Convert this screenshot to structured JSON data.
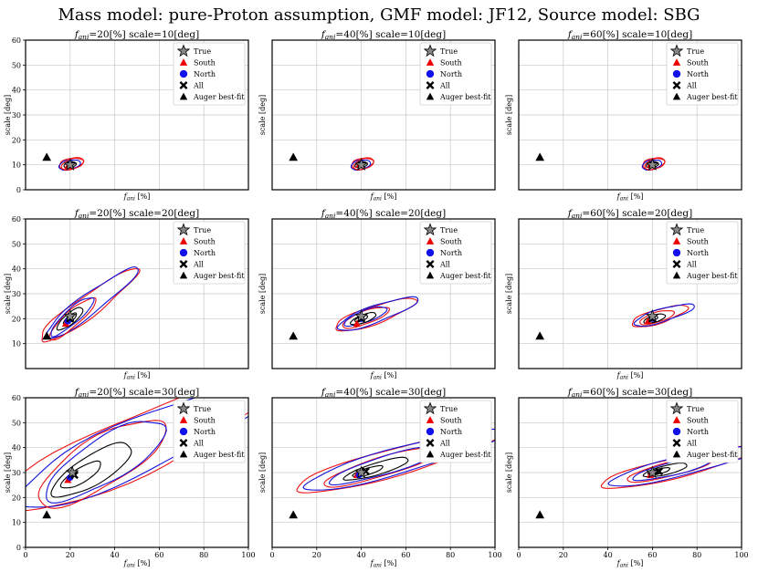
{
  "figure": {
    "title": "Mass model: pure-Proton assumption, GMF model: JF12, Source model: SBG"
  },
  "legend": {
    "entries": [
      {
        "label": "True",
        "marker": "star",
        "color": "#888888"
      },
      {
        "label": "South",
        "marker": "triangle",
        "color": "#ee0000"
      },
      {
        "label": "North",
        "marker": "circle",
        "color": "#1111ee"
      },
      {
        "label": "All",
        "marker": "x",
        "color": "#000000"
      },
      {
        "label": "Auger best-fit",
        "marker": "triangle",
        "color": "#000000"
      }
    ]
  },
  "colors": {
    "south": "#ee1111",
    "north": "#1111dd",
    "all": "#000000",
    "grid": "#c8c8c8"
  },
  "chart_data": [
    {
      "type": "contour",
      "panel_title": "f_ani=20[%] scale=10[deg]",
      "fani": 20,
      "scale": 10,
      "xlabel": "f_ani [%]",
      "ylabel": "scale [deg]",
      "xlim": [
        0,
        100
      ],
      "ylim": [
        0,
        60
      ],
      "yticks": [
        0,
        10,
        20,
        30,
        40,
        50,
        60
      ],
      "xticks": [],
      "grid": true,
      "legend": "top-right",
      "true": [
        20,
        10
      ],
      "south": [
        19,
        9.5
      ],
      "north": [
        20,
        10.5
      ],
      "all": [
        20,
        10
      ],
      "auger": [
        9.5,
        13
      ],
      "contour_extent": {
        "x": [
          15,
          27
        ],
        "y": [
          7,
          14
        ]
      }
    },
    {
      "type": "contour",
      "panel_title": "f_ani=40[%] scale=10[deg]",
      "fani": 40,
      "scale": 10,
      "xlabel": "f_ani [%]",
      "ylabel": "scale [deg]",
      "xlim": [
        0,
        100
      ],
      "ylim": [
        0,
        60
      ],
      "yticks": [],
      "xticks": [],
      "grid": true,
      "legend": "top-right",
      "true": [
        40,
        10
      ],
      "south": [
        39,
        10
      ],
      "north": [
        40,
        10.5
      ],
      "all": [
        40,
        10
      ],
      "auger": [
        9.5,
        13
      ],
      "contour_extent": {
        "x": [
          34,
          46
        ],
        "y": [
          8,
          13
        ]
      }
    },
    {
      "type": "contour",
      "panel_title": "f_ani=60[%] scale=10[deg]",
      "fani": 60,
      "scale": 10,
      "xlabel": "f_ani [%]",
      "ylabel": "scale [deg]",
      "xlim": [
        0,
        100
      ],
      "ylim": [
        0,
        60
      ],
      "yticks": [],
      "xticks": [],
      "grid": true,
      "legend": "top-right",
      "true": [
        60,
        10
      ],
      "south": [
        59,
        10
      ],
      "north": [
        60,
        10.5
      ],
      "all": [
        60,
        10
      ],
      "auger": [
        9.5,
        13
      ],
      "contour_extent": {
        "x": [
          54,
          66
        ],
        "y": [
          8,
          12.5
        ]
      }
    },
    {
      "type": "contour",
      "panel_title": "f_ani=20[%] scale=20[deg]",
      "fani": 20,
      "scale": 20,
      "xlabel": "f_ani [%]",
      "ylabel": "scale [deg]",
      "xlim": [
        0,
        100
      ],
      "ylim": [
        0,
        60
      ],
      "yticks": [
        10,
        20,
        30,
        40,
        50,
        60
      ],
      "xticks": [],
      "grid": true,
      "legend": "top-right",
      "true": [
        20,
        21
      ],
      "south": [
        18,
        18
      ],
      "north": [
        19,
        19
      ],
      "all": [
        20,
        20
      ],
      "auger": [
        9.5,
        13
      ],
      "contour_extent": {
        "x": [
          5,
          55
        ],
        "y": [
          7,
          38
        ]
      }
    },
    {
      "type": "contour",
      "panel_title": "f_ani=40[%] scale=20[deg]",
      "fani": 40,
      "scale": 20,
      "xlabel": "f_ani [%]",
      "ylabel": "scale [deg]",
      "xlim": [
        0,
        100
      ],
      "ylim": [
        0,
        60
      ],
      "yticks": [],
      "xticks": [],
      "grid": true,
      "legend": "top-right",
      "true": [
        40,
        21
      ],
      "south": [
        38,
        18
      ],
      "north": [
        40,
        20
      ],
      "all": [
        40,
        20
      ],
      "auger": [
        9.5,
        13
      ],
      "contour_extent": {
        "x": [
          27,
          68
        ],
        "y": [
          14,
          27
        ]
      }
    },
    {
      "type": "contour",
      "panel_title": "f_ani=60[%] scale=20[deg]",
      "fani": 60,
      "scale": 20,
      "xlabel": "f_ani [%]",
      "ylabel": "scale [deg]",
      "xlim": [
        0,
        100
      ],
      "ylim": [
        0,
        60
      ],
      "yticks": [],
      "xticks": [],
      "grid": true,
      "legend": "top-right",
      "true": [
        60,
        21
      ],
      "south": [
        58,
        19
      ],
      "north": [
        60,
        20
      ],
      "all": [
        60,
        20
      ],
      "auger": [
        9.5,
        13
      ],
      "contour_extent": {
        "x": [
          50,
          78
        ],
        "y": [
          16,
          25
        ]
      }
    },
    {
      "type": "contour",
      "panel_title": "f_ani=20[%] scale=30[deg]",
      "fani": 20,
      "scale": 30,
      "xlabel": "f_ani [%]",
      "ylabel": "scale [deg]",
      "xlim": [
        0,
        100
      ],
      "ylim": [
        0,
        60
      ],
      "yticks": [
        0,
        10,
        20,
        30,
        40,
        50,
        60
      ],
      "xticks": [
        0,
        20,
        40,
        60,
        80,
        100
      ],
      "grid": true,
      "legend": "top-right",
      "true": [
        21,
        30
      ],
      "south": [
        19,
        27
      ],
      "north": [
        20,
        28
      ],
      "all": [
        22,
        29
      ],
      "auger": [
        9.5,
        13
      ],
      "contour_extent": {
        "x": [
          0,
          100
        ],
        "y": [
          0,
          60
        ]
      }
    },
    {
      "type": "contour",
      "panel_title": "f_ani=40[%] scale=30[deg]",
      "fani": 40,
      "scale": 30,
      "xlabel": "f_ani [%]",
      "ylabel": "scale [deg]",
      "xlim": [
        0,
        100
      ],
      "ylim": [
        0,
        60
      ],
      "yticks": [],
      "xticks": [
        0,
        20,
        40,
        60,
        80,
        100
      ],
      "grid": true,
      "legend": "top-right",
      "true": [
        40,
        30
      ],
      "south": [
        38,
        29
      ],
      "north": [
        39,
        29
      ],
      "all": [
        42,
        30.5
      ],
      "auger": [
        9.5,
        13
      ],
      "contour_extent": {
        "x": [
          10,
          100
        ],
        "y": [
          12,
          48
        ]
      }
    },
    {
      "type": "contour",
      "panel_title": "f_ani=60[%] scale=30[deg]",
      "fani": 60,
      "scale": 30,
      "xlabel": "f_ani [%]",
      "ylabel": "scale [deg]",
      "xlim": [
        0,
        100
      ],
      "ylim": [
        0,
        60
      ],
      "yticks": [],
      "xticks": [
        0,
        20,
        40,
        60,
        80,
        100
      ],
      "grid": true,
      "legend": "top-right",
      "true": [
        60,
        30
      ],
      "south": [
        59,
        29
      ],
      "north": [
        60,
        30
      ],
      "all": [
        63,
        30.5
      ],
      "auger": [
        9.5,
        13
      ],
      "contour_extent": {
        "x": [
          25,
          100
        ],
        "y": [
          17,
          37
        ]
      }
    }
  ]
}
